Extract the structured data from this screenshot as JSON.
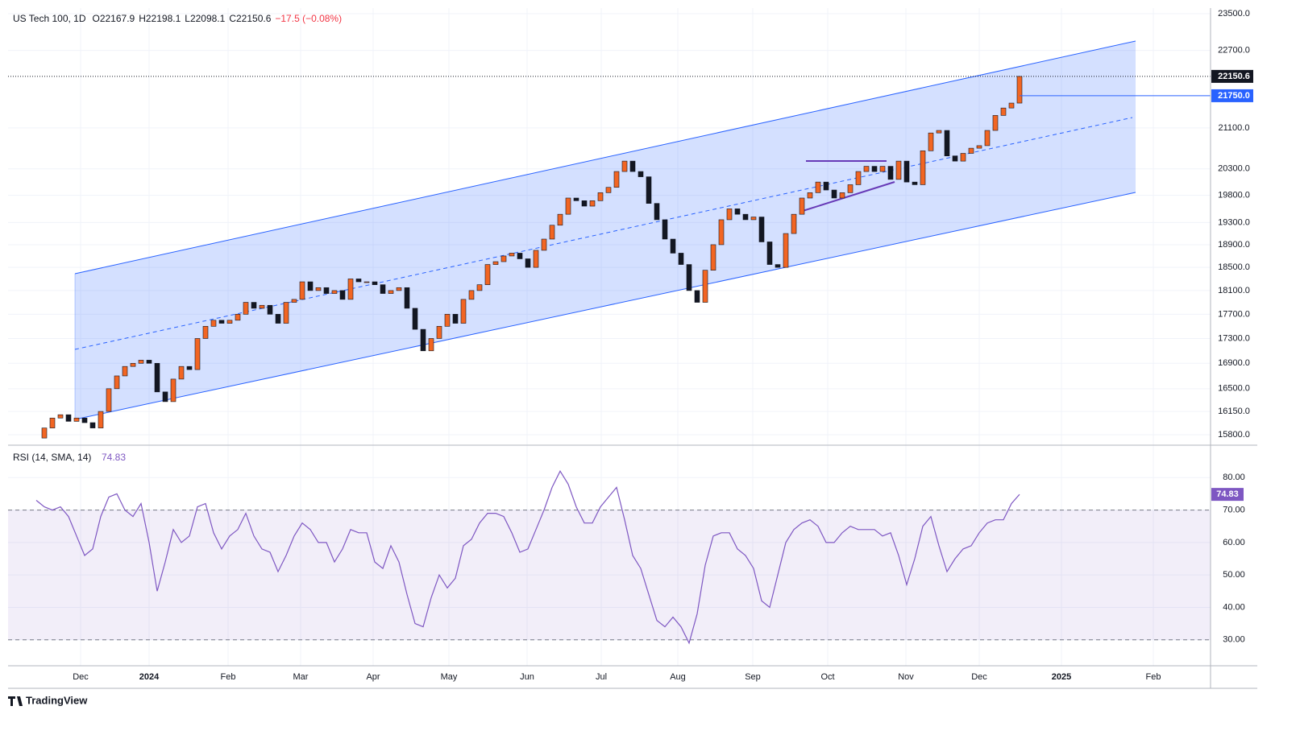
{
  "chart_data": {
    "type": "candlestick",
    "title": "US Tech 100, 1D",
    "legend_values": [
      "O22167.9",
      "H22198.1",
      "L22098.1",
      "C22150.6",
      "−17.5 (−0.08%)"
    ],
    "up_color": "#f26522",
    "down_color": "#131722",
    "log_scale": true,
    "grid": true,
    "close": [
      15750,
      15900,
      16050,
      16100,
      16000,
      16050,
      15980,
      15900,
      16150,
      16500,
      16700,
      16850,
      16900,
      16950,
      16900,
      16450,
      16300,
      16650,
      16850,
      16800,
      17300,
      17500,
      17600,
      17550,
      17600,
      17700,
      17900,
      17800,
      17850,
      17700,
      17550,
      17900,
      17950,
      18250,
      18100,
      18150,
      18050,
      18100,
      17950,
      18300,
      18250,
      18250,
      18200,
      18050,
      18100,
      18150,
      17800,
      17450,
      17100,
      17300,
      17500,
      17700,
      17550,
      17950,
      18100,
      18200,
      18550,
      18600,
      18700,
      18750,
      18650,
      18500,
      18800,
      19000,
      19250,
      19450,
      19750,
      19700,
      19600,
      19700,
      19850,
      19950,
      20250,
      20450,
      20250,
      20150,
      19650,
      19350,
      19000,
      18750,
      18550,
      18100,
      17900,
      18450,
      18900,
      19350,
      19550,
      19450,
      19350,
      19400,
      18950,
      18550,
      18500,
      19100,
      19450,
      19750,
      19850,
      20050,
      19900,
      19750,
      19850,
      20000,
      20250,
      20350,
      20250,
      20350,
      20100,
      20450,
      20050,
      20000,
      20650,
      21000,
      21050,
      20550,
      20450,
      20600,
      20700,
      20750,
      21050,
      21350,
      21500,
      21600,
      22150.6
    ],
    "xlim": [
      -3.5,
      145.7
    ],
    "xticks": [
      {
        "value": 5.5,
        "label": "Dec"
      },
      {
        "value": 14,
        "label": "2024"
      },
      {
        "value": 23.8,
        "label": "Feb"
      },
      {
        "value": 32.8,
        "label": "Mar"
      },
      {
        "value": 41.8,
        "label": "Apr"
      },
      {
        "value": 51.2,
        "label": "May"
      },
      {
        "value": 60.9,
        "label": "Jun"
      },
      {
        "value": 70.1,
        "label": "Jul"
      },
      {
        "value": 79.6,
        "label": "Aug"
      },
      {
        "value": 88.9,
        "label": "Sep"
      },
      {
        "value": 98.2,
        "label": "Oct"
      },
      {
        "value": 107.9,
        "label": "Nov"
      },
      {
        "value": 117,
        "label": "Dec"
      },
      {
        "value": 127.2,
        "label": "2025"
      },
      {
        "value": 138.6,
        "label": "Feb"
      }
    ],
    "ylim": [
      15656,
      23625
    ],
    "yticks": [
      {
        "value": 23500,
        "label": "23500.0"
      },
      {
        "value": 22700,
        "label": "22700.0"
      },
      {
        "value": 21100,
        "label": "21100.0"
      },
      {
        "value": 20300,
        "label": "20300.0"
      },
      {
        "value": 19800,
        "label": "19800.0"
      },
      {
        "value": 19300,
        "label": "19300.0"
      },
      {
        "value": 18900,
        "label": "18900.0"
      },
      {
        "value": 18500,
        "label": "18500.0"
      },
      {
        "value": 18100,
        "label": "18100.0"
      },
      {
        "value": 17700,
        "label": "17700.0"
      },
      {
        "value": 17300,
        "label": "17300.0"
      },
      {
        "value": 16900,
        "label": "16900.0"
      },
      {
        "value": 16500,
        "label": "16500.0"
      },
      {
        "value": 16150,
        "label": "16150.0"
      },
      {
        "value": 15800,
        "label": "15800.0"
      }
    ],
    "hline": {
      "value": 21750,
      "label": "21750.0",
      "color": "#2962ff"
    },
    "rsi": {
      "title": "RSI (14, SMA, 14)",
      "color": "#7e57c2",
      "ylim": [
        22,
        90
      ],
      "yticks": [
        {
          "value": 80,
          "label": "80.00"
        },
        {
          "value": 70,
          "label": "70.00"
        },
        {
          "value": 60,
          "label": "60.00"
        },
        {
          "value": 50,
          "label": "50.00"
        },
        {
          "value": 40,
          "label": "40.00"
        },
        {
          "value": 30,
          "label": "30.00"
        }
      ],
      "bands": [
        30,
        70
      ],
      "values": [
        73,
        71,
        70,
        71,
        68,
        62,
        56,
        58,
        68,
        74,
        75,
        70,
        68,
        72,
        60,
        45,
        54,
        64,
        60,
        62,
        71,
        72,
        63,
        58,
        62,
        64,
        69,
        62,
        58,
        57,
        51,
        56,
        62,
        66,
        64,
        60,
        60,
        54,
        58,
        64,
        63,
        63,
        54,
        52,
        59,
        54,
        44,
        35,
        34,
        43,
        50,
        46,
        49,
        59,
        61,
        66,
        69,
        69,
        68,
        63,
        57,
        58,
        64,
        70,
        77,
        82,
        78,
        71,
        66,
        66,
        71,
        74,
        77,
        67,
        56,
        52,
        44,
        36,
        34,
        37,
        34,
        29,
        38,
        53,
        62,
        63,
        63,
        58,
        56,
        52,
        42,
        40,
        50,
        60,
        64,
        66,
        67,
        65,
        60,
        60,
        63,
        65,
        64,
        64,
        64,
        62,
        63,
        56,
        47,
        55,
        65,
        68,
        59,
        51,
        55,
        58,
        59,
        63,
        66,
        67,
        67,
        72,
        74.83
      ]
    },
    "brand": "TradingView"
  }
}
